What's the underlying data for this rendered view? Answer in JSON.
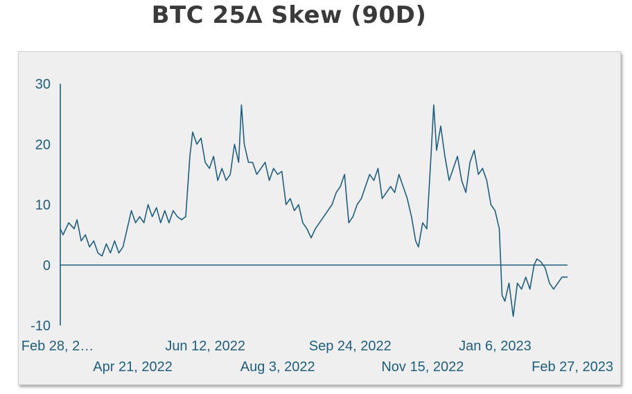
{
  "chart_data": {
    "type": "line",
    "title": "BTC 25∆ Skew (90D)",
    "xlabel": "",
    "ylabel": "",
    "ylim": [
      -10,
      30
    ],
    "y_ticks": [
      30,
      20,
      10,
      0,
      -10
    ],
    "x_ticks": [
      {
        "date": "2022-02-28",
        "label": "Feb 28, 2…",
        "row": 1
      },
      {
        "date": "2022-04-21",
        "label": "Apr 21, 2022",
        "row": 2
      },
      {
        "date": "2022-06-12",
        "label": "Jun 12, 2022",
        "row": 1
      },
      {
        "date": "2022-08-03",
        "label": "Aug 3, 2022",
        "row": 2
      },
      {
        "date": "2022-09-24",
        "label": "Sep 24, 2022",
        "row": 1
      },
      {
        "date": "2022-11-15",
        "label": "Nov 15, 2022",
        "row": 2
      },
      {
        "date": "2023-01-06",
        "label": "Jan 6, 2023",
        "row": 1
      },
      {
        "date": "2023-02-27",
        "label": "Feb 27, 2023",
        "row": 2
      }
    ],
    "xlim": [
      "2022-02-28",
      "2023-02-27"
    ],
    "grid": false,
    "line_color": "#1f5d7d",
    "series": [
      {
        "values": [
          [
            "2022-02-28",
            6
          ],
          [
            "2022-03-02",
            5
          ],
          [
            "2022-03-06",
            7
          ],
          [
            "2022-03-10",
            6
          ],
          [
            "2022-03-12",
            7.5
          ],
          [
            "2022-03-15",
            4
          ],
          [
            "2022-03-18",
            5
          ],
          [
            "2022-03-21",
            3
          ],
          [
            "2022-03-24",
            4
          ],
          [
            "2022-03-27",
            2
          ],
          [
            "2022-03-30",
            1.5
          ],
          [
            "2022-04-02",
            3.5
          ],
          [
            "2022-04-05",
            2
          ],
          [
            "2022-04-08",
            4
          ],
          [
            "2022-04-11",
            2
          ],
          [
            "2022-04-14",
            3
          ],
          [
            "2022-04-17",
            6
          ],
          [
            "2022-04-20",
            9
          ],
          [
            "2022-04-23",
            7
          ],
          [
            "2022-04-26",
            8
          ],
          [
            "2022-04-29",
            7
          ],
          [
            "2022-05-02",
            10
          ],
          [
            "2022-05-05",
            8
          ],
          [
            "2022-05-08",
            9.5
          ],
          [
            "2022-05-11",
            7
          ],
          [
            "2022-05-14",
            9
          ],
          [
            "2022-05-17",
            7
          ],
          [
            "2022-05-20",
            9
          ],
          [
            "2022-05-23",
            8
          ],
          [
            "2022-05-26",
            7.5
          ],
          [
            "2022-05-29",
            8
          ],
          [
            "2022-06-01",
            18
          ],
          [
            "2022-06-03",
            22
          ],
          [
            "2022-06-06",
            20
          ],
          [
            "2022-06-09",
            21
          ],
          [
            "2022-06-12",
            17
          ],
          [
            "2022-06-15",
            16
          ],
          [
            "2022-06-18",
            18
          ],
          [
            "2022-06-21",
            14
          ],
          [
            "2022-06-24",
            16
          ],
          [
            "2022-06-27",
            14
          ],
          [
            "2022-06-30",
            15
          ],
          [
            "2022-07-03",
            20
          ],
          [
            "2022-07-06",
            17
          ],
          [
            "2022-07-08",
            26.5
          ],
          [
            "2022-07-10",
            20
          ],
          [
            "2022-07-13",
            17
          ],
          [
            "2022-07-16",
            17
          ],
          [
            "2022-07-19",
            15
          ],
          [
            "2022-07-22",
            16
          ],
          [
            "2022-07-25",
            17
          ],
          [
            "2022-07-28",
            14
          ],
          [
            "2022-07-31",
            16
          ],
          [
            "2022-08-03",
            15
          ],
          [
            "2022-08-06",
            15.5
          ],
          [
            "2022-08-09",
            10
          ],
          [
            "2022-08-12",
            11
          ],
          [
            "2022-08-15",
            9
          ],
          [
            "2022-08-18",
            10
          ],
          [
            "2022-08-21",
            7
          ],
          [
            "2022-08-24",
            6
          ],
          [
            "2022-08-27",
            4.5
          ],
          [
            "2022-08-30",
            6
          ],
          [
            "2022-09-02",
            7
          ],
          [
            "2022-09-05",
            8
          ],
          [
            "2022-09-08",
            9
          ],
          [
            "2022-09-11",
            10
          ],
          [
            "2022-09-14",
            12
          ],
          [
            "2022-09-17",
            13
          ],
          [
            "2022-09-20",
            15
          ],
          [
            "2022-09-23",
            7
          ],
          [
            "2022-09-26",
            8
          ],
          [
            "2022-09-29",
            10
          ],
          [
            "2022-10-02",
            11
          ],
          [
            "2022-10-05",
            13
          ],
          [
            "2022-10-08",
            15
          ],
          [
            "2022-10-11",
            14
          ],
          [
            "2022-10-14",
            16
          ],
          [
            "2022-10-17",
            11
          ],
          [
            "2022-10-20",
            12
          ],
          [
            "2022-10-23",
            13
          ],
          [
            "2022-10-26",
            12
          ],
          [
            "2022-10-29",
            15
          ],
          [
            "2022-11-01",
            13
          ],
          [
            "2022-11-04",
            11
          ],
          [
            "2022-11-07",
            8
          ],
          [
            "2022-11-10",
            4
          ],
          [
            "2022-11-12",
            3
          ],
          [
            "2022-11-15",
            7
          ],
          [
            "2022-11-18",
            6
          ],
          [
            "2022-11-21",
            18
          ],
          [
            "2022-11-23",
            26.5
          ],
          [
            "2022-11-25",
            19
          ],
          [
            "2022-11-28",
            23
          ],
          [
            "2022-12-01",
            18
          ],
          [
            "2022-12-04",
            14
          ],
          [
            "2022-12-07",
            16
          ],
          [
            "2022-12-10",
            18
          ],
          [
            "2022-12-13",
            14
          ],
          [
            "2022-12-16",
            12
          ],
          [
            "2022-12-19",
            17
          ],
          [
            "2022-12-22",
            19
          ],
          [
            "2022-12-25",
            15
          ],
          [
            "2022-12-28",
            16
          ],
          [
            "2022-12-31",
            14
          ],
          [
            "2023-01-03",
            10
          ],
          [
            "2023-01-06",
            9
          ],
          [
            "2023-01-09",
            6
          ],
          [
            "2023-01-11",
            -5
          ],
          [
            "2023-01-13",
            -6
          ],
          [
            "2023-01-16",
            -3
          ],
          [
            "2023-01-19",
            -8.5
          ],
          [
            "2023-01-22",
            -3
          ],
          [
            "2023-01-25",
            -4
          ],
          [
            "2023-01-28",
            -2
          ],
          [
            "2023-01-31",
            -4
          ],
          [
            "2023-02-03",
            0
          ],
          [
            "2023-02-05",
            1
          ],
          [
            "2023-02-08",
            0.5
          ],
          [
            "2023-02-11",
            -0.5
          ],
          [
            "2023-02-14",
            -3
          ],
          [
            "2023-02-17",
            -4
          ],
          [
            "2023-02-20",
            -3
          ],
          [
            "2023-02-23",
            -2
          ],
          [
            "2023-02-27",
            -2
          ]
        ]
      }
    ]
  }
}
